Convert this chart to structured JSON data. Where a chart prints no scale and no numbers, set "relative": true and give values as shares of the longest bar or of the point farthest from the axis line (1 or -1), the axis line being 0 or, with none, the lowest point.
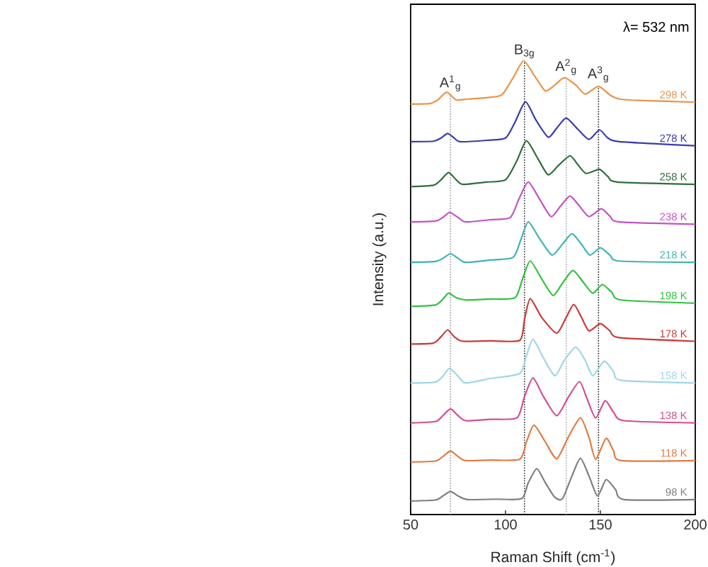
{
  "chart_data": {
    "type": "line",
    "relative": true,
    "xlabel": "Raman Shift (cm$^{-1}$)",
    "ylabel": "Intensity (a.u.)",
    "xlim": [
      50,
      200
    ],
    "xticks": [
      50,
      100,
      150,
      200
    ],
    "annotations": [
      "λ= 532 nm"
    ],
    "ref_lines": [
      {
        "axis": "x",
        "value": 71,
        "label": "A$^{1}$$_{g}$",
        "color": "#999999",
        "line_style": "dotted"
      },
      {
        "axis": "x",
        "value": 110,
        "label": "B$_{3g}$",
        "color": "#333333",
        "line_style": "dotted"
      },
      {
        "axis": "x",
        "value": 132,
        "label": "A$^{2}$$_{g}$",
        "color": "#aaaaaa",
        "line_style": "dotted"
      },
      {
        "axis": "x",
        "value": 149,
        "label": "A$^{3}$$_{g}$",
        "color": "#222222",
        "line_style": "dotted"
      }
    ],
    "series": [
      {
        "name": "298 K",
        "color": "#e8944a",
        "x": [
          50,
          60,
          64,
          69,
          74,
          80,
          90,
          98,
          104,
          109.5,
          115,
          121,
          126,
          131,
          137,
          142,
          149,
          155,
          160,
          170,
          200
        ],
        "values": [
          0.905,
          0.906,
          0.913,
          0.931,
          0.914,
          0.916,
          0.919,
          0.925,
          0.963,
          1.0,
          0.969,
          0.934,
          0.947,
          0.963,
          0.947,
          0.927,
          0.944,
          0.925,
          0.916,
          0.913,
          0.909
        ]
      },
      {
        "name": "278 K",
        "color": "#3b3bb0",
        "x": [
          50,
          62,
          66,
          69.5,
          73,
          76,
          90,
          100,
          105,
          110.5,
          116,
          122.5,
          127,
          132,
          138,
          144,
          149.5,
          154,
          160,
          200
        ],
        "values": [
          0.822,
          0.823,
          0.83,
          0.84,
          0.83,
          0.822,
          0.825,
          0.83,
          0.865,
          0.91,
          0.87,
          0.832,
          0.852,
          0.874,
          0.85,
          0.827,
          0.848,
          0.83,
          0.822,
          0.813
        ]
      },
      {
        "name": "258 K",
        "color": "#2f6e3c",
        "x": [
          50,
          62,
          66,
          70,
          74,
          77.5,
          90,
          100,
          106,
          111,
          117,
          122.5,
          128,
          134,
          138,
          142.5,
          149.5,
          154,
          159,
          200
        ],
        "values": [
          0.723,
          0.726,
          0.738,
          0.754,
          0.738,
          0.728,
          0.733,
          0.738,
          0.78,
          0.824,
          0.785,
          0.749,
          0.77,
          0.791,
          0.772,
          0.752,
          0.761,
          0.745,
          0.733,
          0.728
        ]
      },
      {
        "name": "238 K",
        "color": "#c352c3",
        "x": [
          50,
          63,
          67,
          70.5,
          75,
          79,
          92,
          102.5,
          107,
          112,
          118,
          124,
          129,
          134,
          139,
          144,
          150.5,
          155,
          160,
          200
        ],
        "values": [
          0.645,
          0.647,
          0.655,
          0.666,
          0.655,
          0.645,
          0.65,
          0.655,
          0.695,
          0.733,
          0.695,
          0.657,
          0.68,
          0.702,
          0.68,
          0.657,
          0.674,
          0.658,
          0.645,
          0.64
        ]
      },
      {
        "name": "218 K",
        "color": "#3fb3b3",
        "x": [
          50,
          63,
          67,
          71,
          75,
          79,
          92,
          104,
          108,
          112,
          118,
          124.5,
          130,
          135,
          140,
          144.5,
          150,
          155,
          160,
          200
        ],
        "values": [
          0.556,
          0.558,
          0.565,
          0.575,
          0.565,
          0.556,
          0.561,
          0.567,
          0.605,
          0.645,
          0.608,
          0.572,
          0.596,
          0.619,
          0.596,
          0.572,
          0.588,
          0.572,
          0.559,
          0.556
        ]
      },
      {
        "name": "198 K",
        "color": "#2fc23f",
        "x": [
          50,
          63,
          67,
          70,
          74,
          79,
          92,
          105,
          109,
          113,
          119,
          125,
          130,
          135.5,
          141,
          146,
          151,
          156,
          161,
          200
        ],
        "values": [
          0.459,
          0.462,
          0.475,
          0.488,
          0.478,
          0.473,
          0.475,
          0.478,
          0.52,
          0.559,
          0.52,
          0.483,
          0.51,
          0.538,
          0.512,
          0.488,
          0.507,
          0.49,
          0.473,
          0.466
        ]
      },
      {
        "name": "178 K",
        "color": "#c93c3c",
        "x": [
          50,
          62,
          66,
          69.5,
          73,
          77.5,
          92,
          107.5,
          110,
          113,
          119,
          127,
          132,
          136,
          140,
          144,
          150,
          155,
          160,
          200
        ],
        "values": [
          0.376,
          0.378,
          0.392,
          0.407,
          0.392,
          0.382,
          0.383,
          0.384,
          0.43,
          0.476,
          0.435,
          0.4,
          0.435,
          0.463,
          0.435,
          0.405,
          0.421,
          0.405,
          0.39,
          0.382
        ]
      },
      {
        "name": "158 K",
        "color": "#9fd6e6",
        "x": [
          50,
          63,
          67,
          70.5,
          75,
          79,
          92,
          107.5,
          111,
          114.5,
          120,
          126,
          131,
          137,
          142,
          146,
          152,
          157,
          161,
          200
        ],
        "values": [
          0.29,
          0.292,
          0.305,
          0.322,
          0.305,
          0.29,
          0.3,
          0.311,
          0.35,
          0.386,
          0.345,
          0.306,
          0.34,
          0.369,
          0.34,
          0.306,
          0.338,
          0.315,
          0.296,
          0.29
        ]
      },
      {
        "name": "138 K",
        "color": "#d24d94",
        "x": [
          50,
          63,
          67,
          71,
          75,
          79,
          92,
          106,
          110,
          114.5,
          120,
          127,
          133,
          139,
          143,
          147.5,
          152.5,
          157,
          162.5,
          200
        ],
        "values": [
          0.202,
          0.205,
          0.218,
          0.233,
          0.218,
          0.207,
          0.21,
          0.213,
          0.26,
          0.301,
          0.26,
          0.218,
          0.258,
          0.293,
          0.255,
          0.213,
          0.251,
          0.225,
          0.207,
          0.202
        ]
      },
      {
        "name": "118 K",
        "color": "#e07b41",
        "x": [
          50,
          63,
          67,
          71,
          75,
          79,
          92,
          107.5,
          111,
          115,
          121,
          127,
          133,
          139.5,
          144,
          147.5,
          153,
          157,
          161,
          200
        ],
        "values": [
          0.116,
          0.118,
          0.128,
          0.14,
          0.128,
          0.119,
          0.12,
          0.122,
          0.16,
          0.197,
          0.16,
          0.123,
          0.17,
          0.213,
          0.17,
          0.122,
          0.168,
          0.14,
          0.119,
          0.119
        ]
      },
      {
        "name": "98 K",
        "color": "#7f7f7f",
        "x": [
          50,
          63,
          67,
          71,
          75,
          80,
          95,
          108.5,
          112,
          116.5,
          121,
          126,
          130,
          135,
          139.5,
          144,
          148.5,
          153,
          158,
          162.5,
          200
        ],
        "values": [
          0.03,
          0.032,
          0.041,
          0.051,
          0.041,
          0.033,
          0.034,
          0.035,
          0.07,
          0.101,
          0.07,
          0.038,
          0.035,
          0.085,
          0.124,
          0.085,
          0.041,
          0.077,
          0.055,
          0.033,
          0.033
        ]
      }
    ]
  }
}
